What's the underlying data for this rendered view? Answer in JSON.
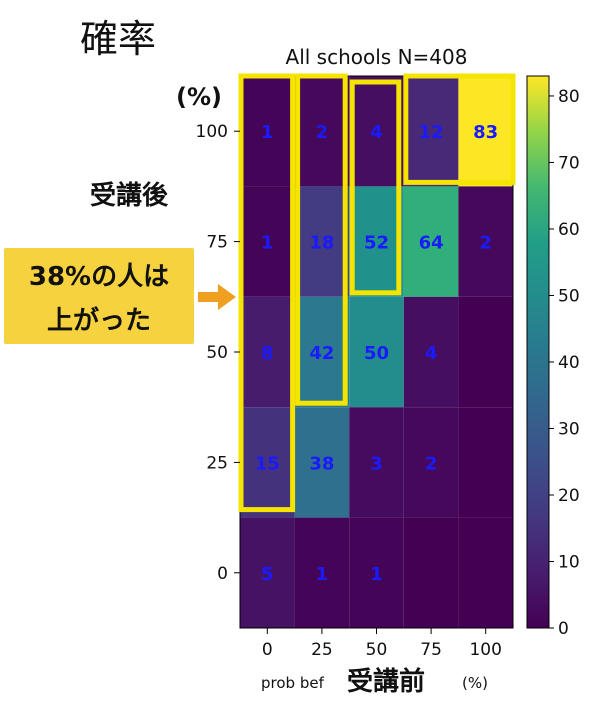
{
  "page": {
    "title": "確率",
    "y_unit": "(%)",
    "y_caption": "受講後",
    "callout_line1": "38%の人は",
    "callout_line2": "上がった",
    "x_caption_small": "prob bef",
    "x_caption_big": "受講前",
    "x_unit": "(%)"
  },
  "chart_data": {
    "type": "heatmap",
    "title": "All schools N=408",
    "x_ticks": [
      "0",
      "25",
      "50",
      "75",
      "100"
    ],
    "y_ticks": [
      "100",
      "75",
      "50",
      "25",
      "0"
    ],
    "values": [
      [
        1,
        2,
        4,
        12,
        83
      ],
      [
        1,
        18,
        52,
        64,
        2
      ],
      [
        8,
        42,
        50,
        4,
        0
      ],
      [
        15,
        38,
        3,
        2,
        0
      ],
      [
        5,
        1,
        1,
        0,
        0
      ]
    ],
    "cell_labels": [
      [
        "1",
        "2",
        "4",
        "12",
        "83"
      ],
      [
        "1",
        "18",
        "52",
        "64",
        "2"
      ],
      [
        "8",
        "42",
        "50",
        "4",
        ""
      ],
      [
        "15",
        "38",
        "3",
        "2",
        ""
      ],
      [
        "5",
        "1",
        "1",
        "",
        ""
      ]
    ],
    "colorbar": {
      "ticks": [
        "0",
        "10",
        "20",
        "30",
        "40",
        "50",
        "60",
        "70",
        "80"
      ],
      "range": [
        0,
        83
      ],
      "colormap": "viridis"
    },
    "label_color": "#1a1aff",
    "highlight_color": "#f5e400",
    "arrow_color": "#f0a020"
  }
}
